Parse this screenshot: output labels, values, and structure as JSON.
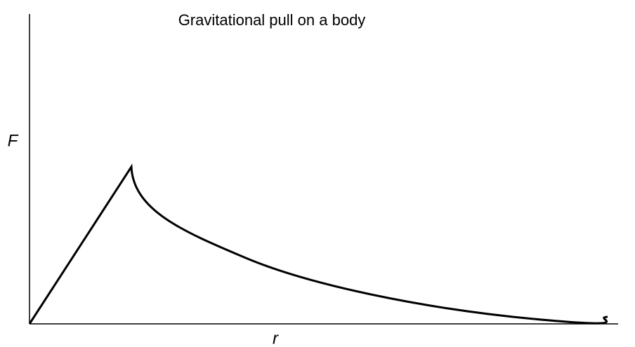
{
  "title": "Gravitational pull on a body",
  "x_label": "r",
  "y_label": "F"
}
